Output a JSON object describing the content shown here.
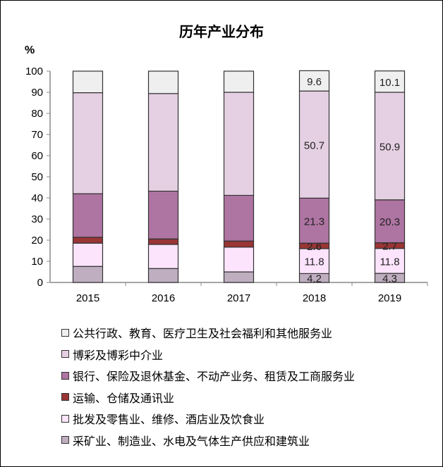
{
  "chart_data": {
    "type": "bar",
    "stacked": true,
    "title": "历年产业分布",
    "ylabel": "%",
    "ylim": [
      0,
      100
    ],
    "yticks": [
      0,
      10,
      20,
      30,
      40,
      50,
      60,
      70,
      80,
      90,
      100
    ],
    "categories": [
      "2015",
      "2016",
      "2017",
      "2018",
      "2019"
    ],
    "legend_position": "bottom",
    "series": [
      {
        "name": "采矿业、制造业、水电及气体生产供应和建筑业",
        "color": "#bfaec0",
        "values": [
          7.6,
          6.6,
          5.0,
          4.2,
          4.3
        ],
        "labels": [
          null,
          null,
          null,
          "4.2",
          "4.3"
        ]
      },
      {
        "name": "批发及零售业、维修、酒店业及饮食业",
        "color": "#fce4fc",
        "values": [
          11.0,
          11.4,
          11.7,
          11.8,
          11.8
        ],
        "labels": [
          null,
          null,
          null,
          "11.8",
          "11.8"
        ]
      },
      {
        "name": "运输、仓储及通讯业",
        "color": "#993535",
        "values": [
          2.8,
          2.6,
          2.9,
          2.6,
          2.7
        ],
        "labels": [
          null,
          null,
          null,
          "2.6",
          "2.7"
        ]
      },
      {
        "name": "银行、保险及退休基金、不动产业务、租赁及工商服务业",
        "color": "#ae74a2",
        "values": [
          20.6,
          22.6,
          21.6,
          21.3,
          20.3
        ],
        "labels": [
          null,
          null,
          null,
          "21.3",
          "20.3"
        ]
      },
      {
        "name": "博彩及博彩中介业",
        "color": "#e5d0e3",
        "values": [
          47.8,
          46.2,
          48.8,
          50.7,
          50.9
        ],
        "labels": [
          null,
          null,
          null,
          "50.7",
          "50.9"
        ]
      },
      {
        "name": "公共行政、教育、医疗卫生及社会福利和其他服务业",
        "color": "#efefef",
        "values": [
          10.2,
          10.6,
          10.0,
          9.6,
          10.1
        ],
        "labels": [
          null,
          null,
          null,
          "9.6",
          "10.1"
        ]
      }
    ],
    "legend_order": [
      5,
      4,
      3,
      2,
      1,
      0
    ]
  }
}
